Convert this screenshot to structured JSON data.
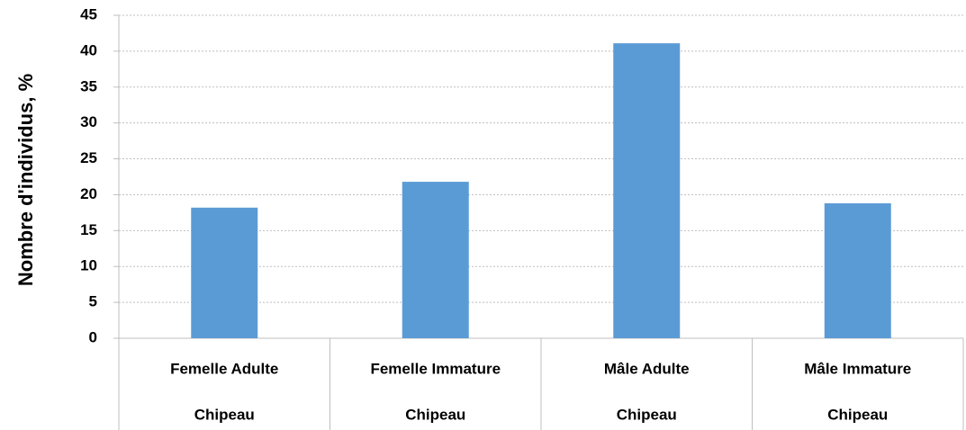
{
  "chart_data": {
    "type": "bar",
    "y_label": "Nombre d'individus, %",
    "categories": [
      "Femelle Adulte",
      "Femelle Immature",
      "Mâle Adulte",
      "Mâle Immature"
    ],
    "groups": [
      "Chipeau",
      "Chipeau",
      "Chipeau",
      "Chipeau"
    ],
    "values": [
      18.2,
      21.8,
      41.1,
      18.8
    ],
    "color": "#5b9bd5",
    "ylim": [
      0,
      45
    ],
    "yticks": [
      0,
      5,
      10,
      15,
      20,
      25,
      30,
      35,
      40,
      45
    ],
    "grid": true
  }
}
